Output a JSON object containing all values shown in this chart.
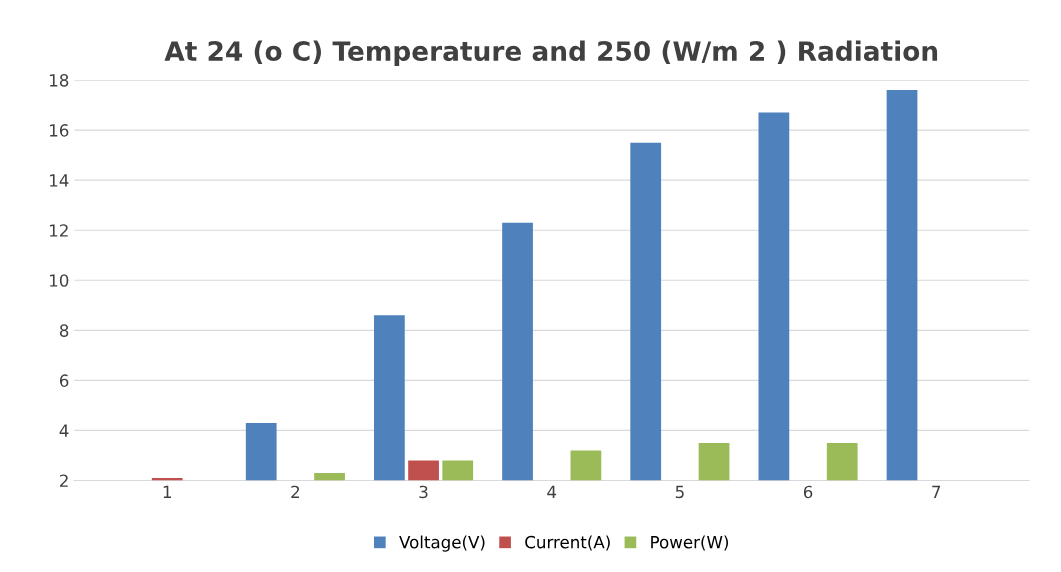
{
  "chart_data": {
    "type": "bar",
    "title": "At 24 (o C) Temperature and 250 (W/m 2 ) Radiation",
    "categories": [
      "1",
      "2",
      "3",
      "4",
      "5",
      "6",
      "7"
    ],
    "series": [
      {
        "name": "Voltage(V)",
        "color": "#4f81bd",
        "values": [
          2.0,
          4.3,
          8.6,
          12.3,
          15.5,
          16.7,
          17.6
        ]
      },
      {
        "name": "Current(A)",
        "color": "#c0504d",
        "values": [
          2.1,
          2.0,
          2.8,
          2.0,
          2.0,
          2.0,
          2.0
        ]
      },
      {
        "name": "Power(W)",
        "color": "#9bbb59",
        "values": [
          2.0,
          2.3,
          2.8,
          3.2,
          3.5,
          3.5,
          2.0
        ]
      }
    ],
    "ylim": [
      2,
      18
    ],
    "yticks": [
      2,
      4,
      6,
      8,
      10,
      12,
      14,
      16,
      18
    ],
    "grid": "y",
    "legend": "bottom"
  }
}
